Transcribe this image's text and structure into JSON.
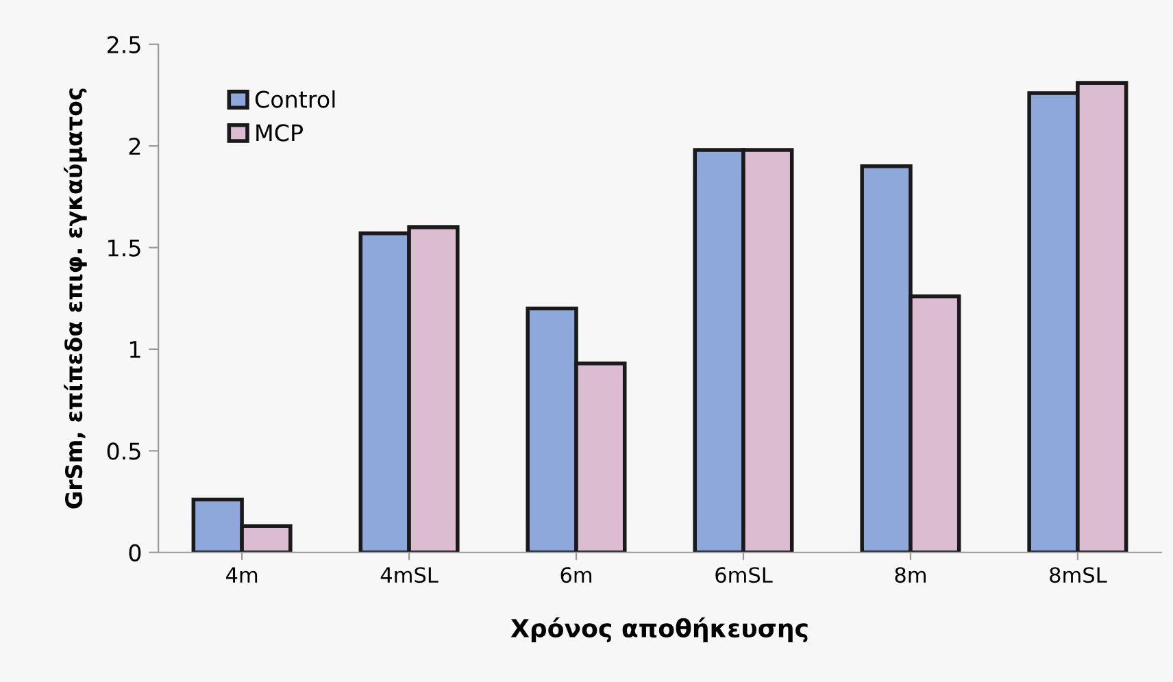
{
  "chart_data": {
    "type": "bar",
    "xlabel": "Χρόνος αποθήκευσης",
    "ylabel": "GrSm, επίπεδα επιφ. εγκαύματος",
    "categories": [
      "4m",
      "4mSL",
      "6m",
      "6mSL",
      "8m",
      "8mSL"
    ],
    "series": [
      {
        "name": "Control",
        "color": "#8fa8dc",
        "values": [
          0.26,
          1.57,
          1.2,
          1.98,
          1.9,
          2.26
        ]
      },
      {
        "name": "MCP",
        "color": "#dcbcd0",
        "values": [
          0.13,
          1.6,
          0.93,
          1.98,
          1.26,
          2.31
        ]
      }
    ],
    "ylim": [
      0,
      2.5
    ],
    "yticks": [
      0,
      0.5,
      1,
      1.5,
      2,
      2.5
    ],
    "grid": false,
    "legend": "top left"
  }
}
